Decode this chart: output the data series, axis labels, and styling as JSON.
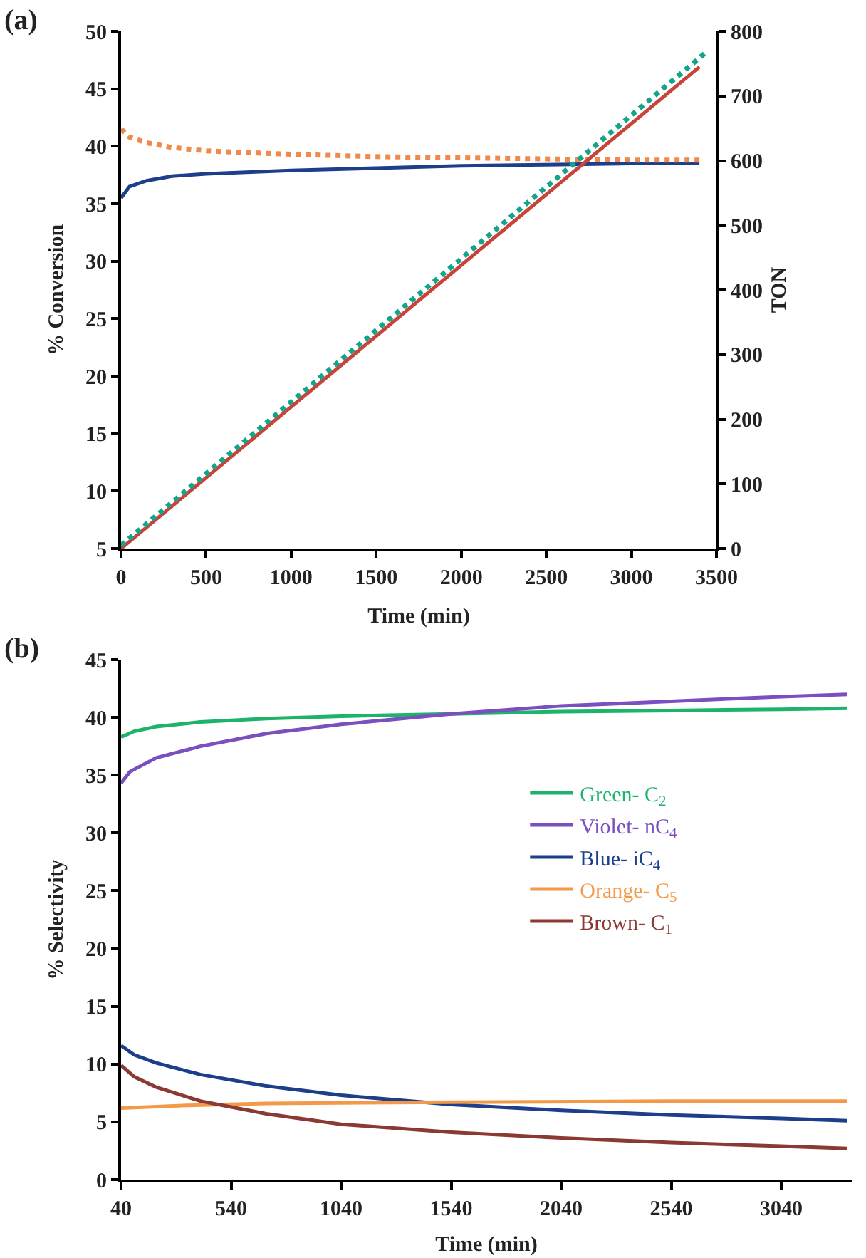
{
  "chart_data": [
    {
      "type": "line",
      "title": "(a)",
      "xlabel": "Time (min)",
      "ylabel": "% Conversion",
      "y2label": "TON",
      "xlim": [
        0,
        3500
      ],
      "xticks": [
        0,
        500,
        1000,
        1500,
        2000,
        2500,
        3000,
        3500
      ],
      "ylim": [
        5,
        50
      ],
      "yticks": [
        5,
        10,
        15,
        20,
        25,
        30,
        35,
        40,
        45,
        50
      ],
      "y2lim": [
        0,
        800
      ],
      "y2ticks": [
        0,
        100,
        200,
        300,
        400,
        500,
        600,
        700,
        800
      ],
      "grid": false,
      "legend": false,
      "marker": "none",
      "series": [
        {
          "color": "#1d3f8a",
          "line_style": "solid",
          "x": [
            0,
            50,
            150,
            300,
            500,
            1000,
            1500,
            2000,
            2500,
            3000,
            3400
          ],
          "values": [
            35.5,
            36.5,
            37,
            37.4,
            37.6,
            37.9,
            38.1,
            38.3,
            38.4,
            38.5,
            38.5
          ]
        },
        {
          "color": "#f08a4b",
          "line_style": "dotted",
          "x": [
            0,
            50,
            150,
            300,
            500,
            1000,
            1500,
            2000,
            2500,
            3000,
            3400
          ],
          "values": [
            41.5,
            40.8,
            40.3,
            39.9,
            39.6,
            39.3,
            39.1,
            39,
            38.9,
            38.8,
            38.8
          ]
        },
        {
          "color": "#c8443a",
          "line_style": "solid",
          "axis": "y2",
          "x": [
            0,
            3400
          ],
          "values": [
            0,
            745
          ]
        },
        {
          "color": "#13a58a",
          "line_style": "dotted",
          "axis": "y2",
          "x": [
            0,
            3450
          ],
          "values": [
            5,
            770
          ]
        }
      ]
    },
    {
      "type": "line",
      "title": "(b)",
      "xlabel": "Time (min)",
      "ylabel": "% Selectivity",
      "xlim": [
        40,
        3360
      ],
      "xticks": [
        40,
        540,
        1040,
        1540,
        2040,
        2540,
        3040
      ],
      "ylim": [
        0,
        45
      ],
      "yticks": [
        0,
        5,
        10,
        15,
        20,
        25,
        30,
        35,
        40,
        45
      ],
      "grid": false,
      "legend": "right",
      "marker": "none",
      "line_style": "solid",
      "series": [
        {
          "name": "Green- C$_{2}$",
          "color": "#1db36b",
          "x": [
            40,
            100,
            200,
            400,
            700,
            1040,
            1540,
            2040,
            2540,
            3040,
            3340
          ],
          "values": [
            38.3,
            38.8,
            39.2,
            39.6,
            39.9,
            40.1,
            40.3,
            40.5,
            40.6,
            40.7,
            40.8
          ]
        },
        {
          "name": "Violet- nC$_{4}$",
          "color": "#7b4fc0",
          "x": [
            40,
            80,
            200,
            400,
            700,
            1040,
            1540,
            2040,
            2540,
            3040,
            3340
          ],
          "values": [
            34.3,
            35.3,
            36.5,
            37.5,
            38.6,
            39.4,
            40.3,
            41,
            41.4,
            41.8,
            42
          ]
        },
        {
          "name": "Blue- iC$_{4}$",
          "color": "#1d3f8a",
          "x": [
            40,
            100,
            200,
            400,
            700,
            1040,
            1540,
            2040,
            2540,
            3040,
            3340
          ],
          "values": [
            11.6,
            10.8,
            10.1,
            9.1,
            8.1,
            7.3,
            6.5,
            6,
            5.6,
            5.3,
            5.1
          ]
        },
        {
          "name": "Orange- C$_{5}$",
          "color": "#f39a4a",
          "x": [
            40,
            300,
            700,
            1540,
            2540,
            3340
          ],
          "values": [
            6.2,
            6.4,
            6.6,
            6.7,
            6.8,
            6.8
          ]
        },
        {
          "name": "Brown- C$_{1}$",
          "color": "#8b3a33",
          "x": [
            40,
            100,
            200,
            400,
            700,
            1040,
            1540,
            2040,
            2540,
            3040,
            3340
          ],
          "values": [
            9.9,
            8.9,
            8,
            6.8,
            5.7,
            4.8,
            4.1,
            3.6,
            3.2,
            2.9,
            2.7
          ]
        }
      ]
    }
  ]
}
